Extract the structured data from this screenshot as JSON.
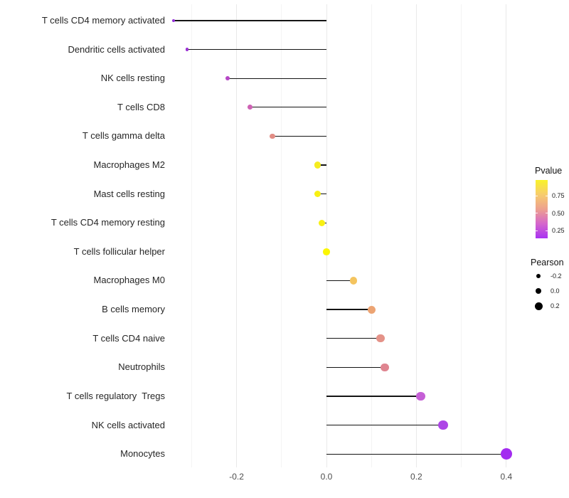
{
  "figure": {
    "background": "#ffffff"
  },
  "chart_data": {
    "type": "lollipop",
    "orientation": "horizontal",
    "title": "",
    "xlabel": "",
    "ylabel": "",
    "categories": [
      "T cells CD4 memory activated",
      "Dendritic cells activated",
      "NK cells resting",
      "T cells CD8",
      "T cells gamma delta",
      "Macrophages M2",
      "Mast cells resting",
      "T cells CD4 memory resting",
      "T cells follicular helper",
      "Macrophages M0",
      "B cells memory",
      "T cells CD4 naive",
      "Neutrophils",
      "T cells regulatory  Tregs",
      "NK cells activated",
      "Monocytes"
    ],
    "points": [
      {
        "label": "T cells CD4 memory activated",
        "pearson": -0.34,
        "pvalue_approx": 0.08,
        "color": "#9430d8"
      },
      {
        "label": "Dendritic cells activated",
        "pearson": -0.31,
        "pvalue_approx": 0.1,
        "color": "#9c32d4"
      },
      {
        "label": "NK cells resting",
        "pearson": -0.22,
        "pvalue_approx": 0.2,
        "color": "#b647c6"
      },
      {
        "label": "T cells CD8",
        "pearson": -0.17,
        "pvalue_approx": 0.33,
        "color": "#ce62b4"
      },
      {
        "label": "T cells gamma delta",
        "pearson": -0.12,
        "pvalue_approx": 0.5,
        "color": "#e28d85"
      },
      {
        "label": "Macrophages M2",
        "pearson": -0.02,
        "pvalue_approx": 0.85,
        "color": "#f5ec20"
      },
      {
        "label": "Mast cells resting",
        "pearson": -0.02,
        "pvalue_approx": 0.88,
        "color": "#f8f013"
      },
      {
        "label": "T cells CD4 memory resting",
        "pearson": -0.01,
        "pvalue_approx": 0.9,
        "color": "#f8f013"
      },
      {
        "label": "T cells follicular helper",
        "pearson": 0.0,
        "pvalue_approx": 0.95,
        "color": "#fbf603"
      },
      {
        "label": "Macrophages M0",
        "pearson": 0.06,
        "pvalue_approx": 0.7,
        "color": "#f4c45f"
      },
      {
        "label": "B cells memory",
        "pearson": 0.1,
        "pvalue_approx": 0.6,
        "color": "#eca473"
      },
      {
        "label": "T cells CD4 naive",
        "pearson": 0.12,
        "pvalue_approx": 0.52,
        "color": "#e49288"
      },
      {
        "label": "Neutrophils",
        "pearson": 0.13,
        "pvalue_approx": 0.48,
        "color": "#df8590"
      },
      {
        "label": "T cells regulatory  Tregs",
        "pearson": 0.21,
        "pvalue_approx": 0.22,
        "color": "#c55fd6"
      },
      {
        "label": "NK cells activated",
        "pearson": 0.26,
        "pvalue_approx": 0.12,
        "color": "#ad45e6"
      },
      {
        "label": "Monocytes",
        "pearson": 0.4,
        "pvalue_approx": 0.05,
        "color": "#a32cf0"
      }
    ],
    "x_ticks": [
      -0.2,
      0.0,
      0.2,
      0.4
    ],
    "x_tick_labels": [
      "-0.2",
      "0.0",
      "0.2",
      "0.4"
    ],
    "x_minor_ticks": [
      -0.3,
      -0.1,
      0.1,
      0.3
    ],
    "xlim": [
      -0.35,
      0.45
    ],
    "grid": "vertical gridlines only, light gray, every 0.1",
    "legend_position": "right",
    "legends": {
      "pvalue": {
        "title": "Pvalue",
        "type": "colorbar",
        "tick_labels": [
          "0.75",
          "0.50",
          "0.25"
        ],
        "gradient_top_to_bottom": [
          "#f9f32a",
          "#f7cc6d",
          "#eda08f",
          "#d566cc",
          "#a833f2"
        ]
      },
      "pearson": {
        "title": "Pearson",
        "type": "size",
        "entries": [
          {
            "label": "-0.2"
          },
          {
            "label": "0.0"
          },
          {
            "label": "0.2"
          }
        ],
        "dot_color": "#000000"
      }
    }
  }
}
